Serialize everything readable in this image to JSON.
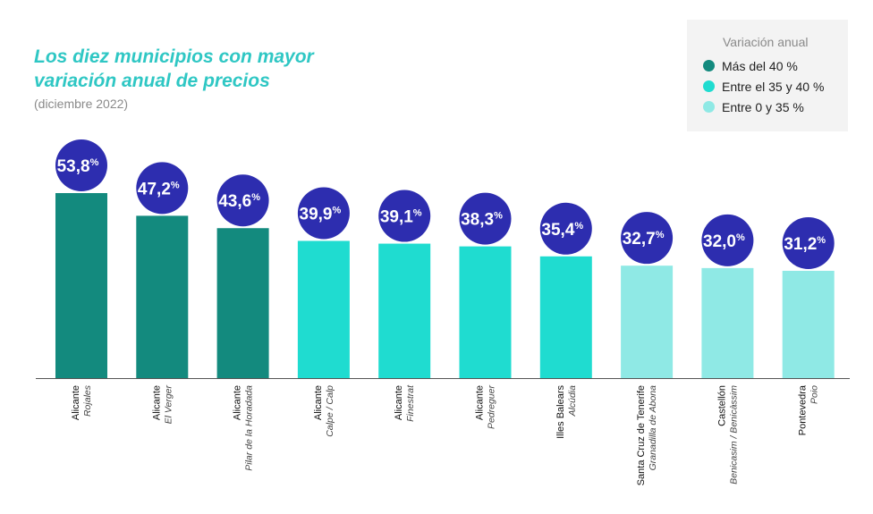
{
  "chart_data": {
    "type": "bar",
    "title": "Los diez municipios con mayor variación anual de precios",
    "subtitle": "(diciembre 2022)",
    "value_suffix": "%",
    "decimal_separator": ",",
    "categories": [
      {
        "region": "Alicante",
        "municipality": "Rojales"
      },
      {
        "region": "Alicante",
        "municipality": "El Verger"
      },
      {
        "region": "Alicante",
        "municipality": "Pilar de la Horadada"
      },
      {
        "region": "Alicante",
        "municipality": "Calpe / Calp"
      },
      {
        "region": "Alicante",
        "municipality": "Finestrat"
      },
      {
        "region": "Alicante",
        "municipality": "Pedreguer"
      },
      {
        "region": "Illes Balears",
        "municipality": "Alcúdia"
      },
      {
        "region": "Santa Cruz de Tenerife",
        "municipality": "Granadilla de Abona"
      },
      {
        "region": "Castellón",
        "municipality": "Benicasim / Benicàssim"
      },
      {
        "region": "Pontevedra",
        "municipality": "Poio"
      }
    ],
    "values": [
      53.8,
      47.2,
      43.6,
      39.9,
      39.1,
      38.3,
      35.4,
      32.7,
      32.0,
      31.2
    ],
    "ylim": [
      0,
      53.8
    ],
    "legend": {
      "title": "Variación anual",
      "position": "top-right",
      "items": [
        {
          "label": "Más del 40 %",
          "color": "#138a7e"
        },
        {
          "label": "Entre el 35 y 40 %",
          "color": "#1fdcd0"
        },
        {
          "label": "Entre 0 y 35 %",
          "color": "#8fe9e5"
        }
      ]
    },
    "badge_color": "#2d2daf",
    "grid": false
  }
}
